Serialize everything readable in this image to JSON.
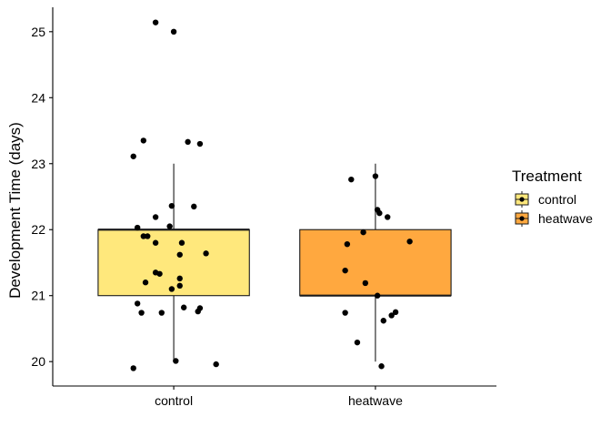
{
  "chart_data": {
    "type": "boxplot",
    "xlabel": "",
    "ylabel": "Development Time (days)",
    "categories": [
      "control",
      "heatwave"
    ],
    "ylim": [
      19.63,
      25.37
    ],
    "yticks": [
      20,
      21,
      22,
      23,
      24,
      25
    ],
    "grid": false,
    "legend": {
      "title": "Treatment",
      "position": "right",
      "entries": [
        "control",
        "heatwave"
      ]
    },
    "colors": {
      "control": "#FFE87C",
      "heatwave": "#FFA83F",
      "points": "#000000",
      "lines": "#1a1a1a"
    },
    "boxes": [
      {
        "category": "control",
        "whisker_low": 20,
        "q1": 21,
        "median": 22,
        "q3": 22,
        "whisker_high": 23
      },
      {
        "category": "heatwave",
        "whisker_low": 20,
        "q1": 21,
        "median": 21,
        "q3": 22,
        "whisker_high": 23
      }
    ],
    "points": [
      {
        "category": "control",
        "x_offset": -0.2,
        "y": 19.9
      },
      {
        "category": "control",
        "x_offset": 0.01,
        "y": 20.01
      },
      {
        "category": "control",
        "x_offset": 0.21,
        "y": 19.96
      },
      {
        "category": "control",
        "x_offset": -0.18,
        "y": 20.88
      },
      {
        "category": "control",
        "x_offset": -0.16,
        "y": 20.74
      },
      {
        "category": "control",
        "x_offset": -0.06,
        "y": 20.74
      },
      {
        "category": "control",
        "x_offset": 0.05,
        "y": 20.82
      },
      {
        "category": "control",
        "x_offset": 0.12,
        "y": 20.76
      },
      {
        "category": "control",
        "x_offset": 0.13,
        "y": 20.81
      },
      {
        "category": "control",
        "x_offset": -0.14,
        "y": 21.2
      },
      {
        "category": "control",
        "x_offset": -0.09,
        "y": 21.35
      },
      {
        "category": "control",
        "x_offset": -0.07,
        "y": 21.33
      },
      {
        "category": "control",
        "x_offset": -0.01,
        "y": 21.1
      },
      {
        "category": "control",
        "x_offset": 0.03,
        "y": 21.15
      },
      {
        "category": "control",
        "x_offset": 0.03,
        "y": 21.26
      },
      {
        "category": "control",
        "x_offset": 0.03,
        "y": 21.62
      },
      {
        "category": "control",
        "x_offset": 0.04,
        "y": 21.8
      },
      {
        "category": "control",
        "x_offset": 0.16,
        "y": 21.64
      },
      {
        "category": "control",
        "x_offset": -0.18,
        "y": 22.03
      },
      {
        "category": "control",
        "x_offset": -0.15,
        "y": 21.9
      },
      {
        "category": "control",
        "x_offset": -0.13,
        "y": 21.9
      },
      {
        "category": "control",
        "x_offset": -0.09,
        "y": 21.8
      },
      {
        "category": "control",
        "x_offset": -0.09,
        "y": 22.19
      },
      {
        "category": "control",
        "x_offset": -0.02,
        "y": 22.05
      },
      {
        "category": "control",
        "x_offset": -0.01,
        "y": 22.36
      },
      {
        "category": "control",
        "x_offset": 0.1,
        "y": 22.35
      },
      {
        "category": "control",
        "x_offset": -0.2,
        "y": 23.11
      },
      {
        "category": "control",
        "x_offset": -0.15,
        "y": 23.35
      },
      {
        "category": "control",
        "x_offset": 0.07,
        "y": 23.33
      },
      {
        "category": "control",
        "x_offset": 0.13,
        "y": 23.3
      },
      {
        "category": "control",
        "x_offset": -0.09,
        "y": 25.14
      },
      {
        "category": "control",
        "x_offset": 0.0,
        "y": 25.0
      },
      {
        "category": "heatwave",
        "x_offset": -0.15,
        "y": 20.74
      },
      {
        "category": "heatwave",
        "x_offset": -0.09,
        "y": 20.29
      },
      {
        "category": "heatwave",
        "x_offset": 0.03,
        "y": 19.93
      },
      {
        "category": "heatwave",
        "x_offset": 0.04,
        "y": 20.62
      },
      {
        "category": "heatwave",
        "x_offset": 0.08,
        "y": 20.7
      },
      {
        "category": "heatwave",
        "x_offset": 0.1,
        "y": 20.75
      },
      {
        "category": "heatwave",
        "x_offset": -0.15,
        "y": 21.38
      },
      {
        "category": "heatwave",
        "x_offset": -0.05,
        "y": 21.19
      },
      {
        "category": "heatwave",
        "x_offset": 0.01,
        "y": 21.0
      },
      {
        "category": "heatwave",
        "x_offset": -0.14,
        "y": 21.78
      },
      {
        "category": "heatwave",
        "x_offset": -0.06,
        "y": 21.96
      },
      {
        "category": "heatwave",
        "x_offset": 0.17,
        "y": 21.82
      },
      {
        "category": "heatwave",
        "x_offset": 0.01,
        "y": 22.3
      },
      {
        "category": "heatwave",
        "x_offset": 0.02,
        "y": 22.25
      },
      {
        "category": "heatwave",
        "x_offset": 0.06,
        "y": 22.19
      },
      {
        "category": "heatwave",
        "x_offset": -0.12,
        "y": 22.76
      },
      {
        "category": "heatwave",
        "x_offset": 0.0,
        "y": 22.81
      }
    ]
  }
}
